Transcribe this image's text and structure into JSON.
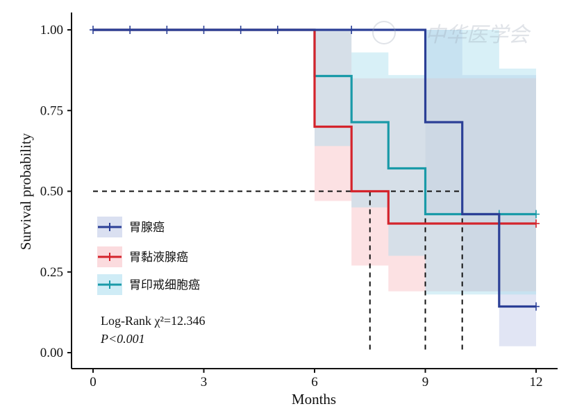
{
  "chart_data": {
    "type": "line",
    "subtype": "kaplan-meier step",
    "xlabel": "Months",
    "ylabel": "Survival probability",
    "xlim": [
      0,
      12
    ],
    "ylim": [
      0,
      1
    ],
    "xticks": [
      "0",
      "3",
      "6",
      "9",
      "12"
    ],
    "yticks": [
      "0.00",
      "0.25",
      "0.50",
      "0.75",
      "1.00"
    ],
    "legend_position": "left-middle",
    "series": [
      {
        "name": "胃腺癌",
        "color": "#2b3f96",
        "band_color": "#bcc6e6",
        "steps": [
          [
            0,
            1.0
          ],
          [
            9,
            1.0
          ],
          [
            9,
            0.714
          ],
          [
            10,
            0.714
          ],
          [
            10,
            0.429
          ],
          [
            11,
            0.429
          ],
          [
            11,
            0.143
          ],
          [
            12,
            0.143
          ]
        ],
        "band": [
          [
            0,
            1.0,
            1.0
          ],
          [
            9,
            0.43,
            1.0
          ],
          [
            10,
            0.19,
            0.86
          ],
          [
            11,
            0.02,
            0.86
          ],
          [
            12,
            0.02,
            0.86
          ]
        ],
        "censors": [
          [
            0,
            1.0
          ],
          [
            1,
            1.0
          ],
          [
            2,
            1.0
          ],
          [
            3,
            1.0
          ],
          [
            4,
            1.0
          ],
          [
            5,
            1.0
          ],
          [
            7,
            1.0
          ],
          [
            12,
            0.143
          ]
        ]
      },
      {
        "name": "胃黏液腺癌",
        "color": "#d4242c",
        "band_color": "#f8bdc2",
        "steps": [
          [
            0,
            1.0
          ],
          [
            6,
            1.0
          ],
          [
            6,
            0.7
          ],
          [
            7,
            0.7
          ],
          [
            7,
            0.5
          ],
          [
            8,
            0.5
          ],
          [
            8,
            0.4
          ],
          [
            12,
            0.4
          ]
        ],
        "band": [
          [
            0,
            1.0,
            1.0
          ],
          [
            6,
            0.47,
            1.0
          ],
          [
            7,
            0.27,
            0.85
          ],
          [
            8,
            0.19,
            0.85
          ],
          [
            9,
            0.19,
            0.85
          ],
          [
            12,
            0.19,
            0.85
          ]
        ],
        "censors": [
          [
            12,
            0.4
          ]
        ]
      },
      {
        "name": "胃印戒细胞癌",
        "color": "#1a9aa8",
        "band_color": "#a8ddee",
        "steps": [
          [
            0,
            1.0
          ],
          [
            6,
            1.0
          ],
          [
            6,
            0.857
          ],
          [
            7,
            0.857
          ],
          [
            7,
            0.714
          ],
          [
            8,
            0.714
          ],
          [
            8,
            0.571
          ],
          [
            9,
            0.571
          ],
          [
            9,
            0.429
          ],
          [
            12,
            0.429
          ]
        ],
        "band": [
          [
            0,
            1.0,
            1.0
          ],
          [
            6,
            0.64,
            1.0
          ],
          [
            7,
            0.45,
            0.93
          ],
          [
            8,
            0.3,
            0.86
          ],
          [
            9,
            0.18,
            1.0
          ],
          [
            11,
            0.18,
            0.88
          ],
          [
            12,
            0.18,
            0.88
          ]
        ],
        "censors": [
          [
            11,
            0.429
          ],
          [
            12,
            0.429
          ]
        ]
      }
    ],
    "median_lines": {
      "y": 0.5,
      "x_values": [
        7.5,
        9,
        10
      ]
    },
    "annotations": {
      "test_label": "Log-Rank χ²=12.346",
      "p_value": "P<0.001"
    }
  },
  "watermark": "中华医学会"
}
